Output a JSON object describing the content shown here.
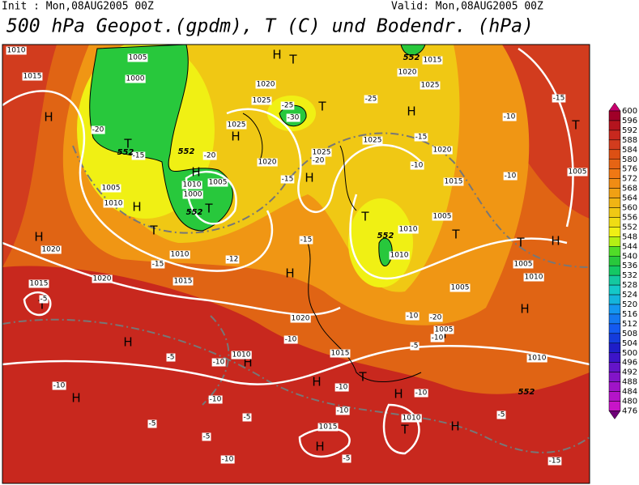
{
  "header": {
    "init": "Init : Mon,08AUG2005 00Z",
    "valid": "Valid: Mon,08AUG2005 00Z",
    "title": "500 hPa Geopot.(gpdm), T (C) und Bodendr. (hPa)"
  },
  "colorbar": {
    "labels": [
      "600",
      "596",
      "592",
      "588",
      "584",
      "580",
      "576",
      "572",
      "568",
      "564",
      "560",
      "556",
      "552",
      "548",
      "544",
      "540",
      "536",
      "532",
      "528",
      "524",
      "520",
      "516",
      "512",
      "508",
      "504",
      "500",
      "496",
      "492",
      "488",
      "484",
      "480",
      "476"
    ],
    "colors": [
      "#c8006e",
      "#a00028",
      "#b4141e",
      "#c8281e",
      "#d23c1e",
      "#dc5014",
      "#e66414",
      "#f07814",
      "#f08c14",
      "#f0a014",
      "#f0b414",
      "#f0c814",
      "#f0dc14",
      "#f0f014",
      "#b4f014",
      "#50dc28",
      "#28c83c",
      "#14c864",
      "#14c8a0",
      "#14c8c8",
      "#14b4dc",
      "#1496f0",
      "#1478f0",
      "#145af0",
      "#143cdc",
      "#1e1ec8",
      "#3c14c8",
      "#6414c8",
      "#8214c8",
      "#a014c8",
      "#b414c8",
      "#c814c8",
      "#6e0078"
    ]
  },
  "map": {
    "labels": [
      "H",
      "T",
      "H",
      "T",
      "H",
      "T",
      "H",
      "H",
      "H",
      "H",
      "T",
      "H",
      "T",
      "T",
      "H",
      "H",
      "T",
      "H",
      "T",
      "T",
      "H",
      "T",
      "H",
      "H",
      "H",
      "T",
      "H",
      "T",
      "H",
      "H",
      "H",
      "1010",
      "1015",
      "1005",
      "1000",
      "1005",
      "1010",
      "1020",
      "1015",
      "1020",
      "1010",
      "1015",
      "1025",
      "1020",
      "1010",
      "1000",
      "1005",
      "1020",
      "1025",
      "1025",
      "1025",
      "1020",
      "1015",
      "1005",
      "1010",
      "1010",
      "1005",
      "1005",
      "1005",
      "1010",
      "1010",
      "1020",
      "1015",
      "1010",
      "1010",
      "1015",
      "1020",
      "1025",
      "1015",
      "1005",
      "-20",
      "-15",
      "-20",
      "-30",
      "-25",
      "-25",
      "-15",
      "-10",
      "-10",
      "-10",
      "-15",
      "-20",
      "-15",
      "-15",
      "-15",
      "-12",
      "-5",
      "-10",
      "-10",
      "-5",
      "-5",
      "-10",
      "-10",
      "-10",
      "-10",
      "-10",
      "-5",
      "-5",
      "-5",
      "-10",
      "-5",
      "-10",
      "-5",
      "-15",
      "-20",
      "-10",
      "552",
      "552",
      "552",
      "552",
      "552",
      "552"
    ]
  }
}
